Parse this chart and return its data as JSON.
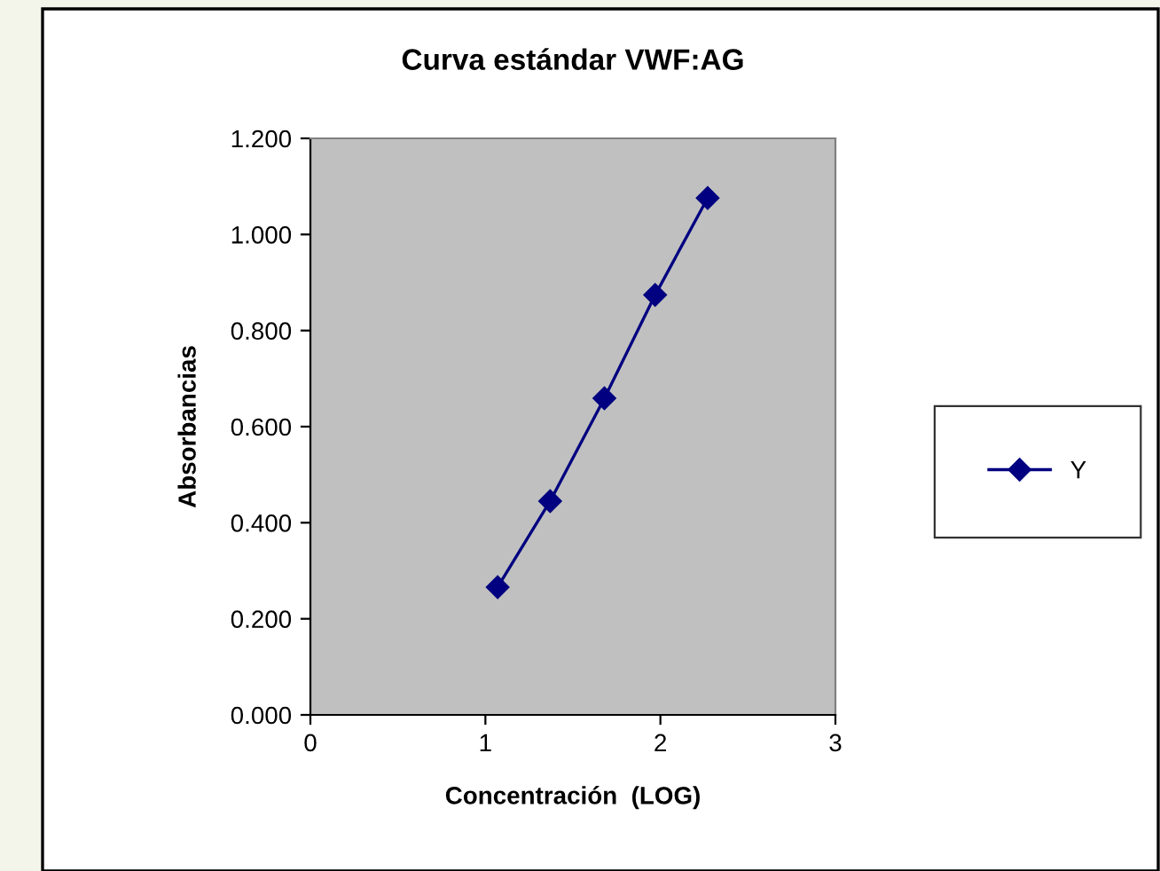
{
  "chart_data": {
    "type": "line",
    "title": "Curva estándar VWF:AG",
    "xlabel": "Concentración  (LOG)",
    "ylabel": "Absorbancias",
    "x": [
      1.07,
      1.37,
      1.68,
      1.97,
      2.27
    ],
    "series": [
      {
        "name": "Y",
        "color": "#000080",
        "values": [
          0.266,
          0.445,
          0.659,
          0.874,
          1.076
        ]
      }
    ],
    "xlim": [
      0,
      3
    ],
    "xticks": [
      0,
      1,
      2,
      3
    ],
    "ylim": [
      0,
      1.2
    ],
    "yticks": [
      {
        "value": 0,
        "label": "0.000"
      },
      {
        "value": 0.2,
        "label": "0.200"
      },
      {
        "value": 0.4,
        "label": "0.400"
      },
      {
        "value": 0.6,
        "label": "0.600"
      },
      {
        "value": 0.8,
        "label": "0.800"
      },
      {
        "value": 1.0,
        "label": "1.000"
      },
      {
        "value": 1.2,
        "label": "1.200"
      }
    ],
    "marker": "diamond",
    "line_style": "solid",
    "grid": false,
    "legend": "right"
  }
}
